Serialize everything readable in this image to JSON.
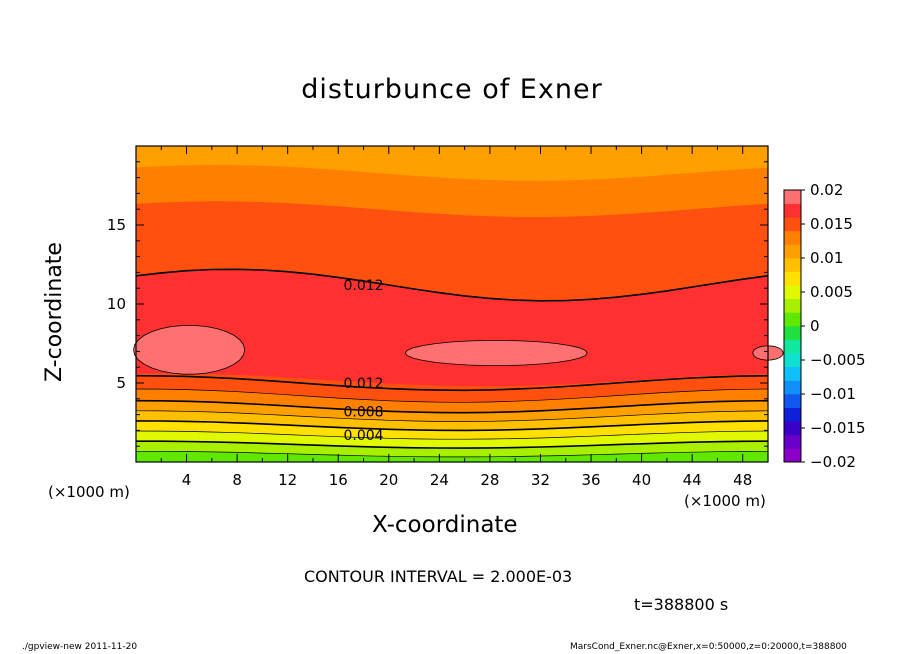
{
  "chart_data": {
    "type": "contour",
    "title": "disturbunce of Exner",
    "xlabel": "X-coordinate",
    "ylabel": "Z-coordinate",
    "x_unit_label": "(×1000 m)",
    "x_range": [
      0,
      50
    ],
    "y_range": [
      0,
      20
    ],
    "x_ticks": [
      4,
      8,
      12,
      16,
      20,
      24,
      28,
      32,
      36,
      40,
      44,
      48
    ],
    "y_ticks": [
      5,
      10,
      15
    ],
    "colorbar": {
      "tick_labels": [
        "0.02",
        "0.015",
        "0.01",
        "0.005",
        "0",
        "−0.005",
        "−0.01",
        "−0.015",
        "−0.02"
      ],
      "levels": [
        -0.02,
        -0.018,
        -0.016,
        -0.014,
        -0.012,
        -0.01,
        -0.008,
        -0.006,
        -0.004,
        -0.002,
        0,
        0.002,
        0.004,
        0.006,
        0.008,
        0.01,
        0.012,
        0.014,
        0.016,
        0.018,
        0.02
      ],
      "colors": [
        "#8b00c8",
        "#6a00c8",
        "#3a00c8",
        "#1020d8",
        "#1058f0",
        "#1090f8",
        "#10c0f8",
        "#10e0d0",
        "#10e8a0",
        "#20e040",
        "#60e800",
        "#a8f000",
        "#e0f800",
        "#ffe000",
        "#ffc000",
        "#ffa000",
        "#ff8000",
        "#ff5010",
        "#ff3030",
        "#ff7070"
      ]
    },
    "contour_labels": [
      "0.012",
      "0.012",
      "0.008",
      "0.004"
    ],
    "field_bands": {
      "surface": [
        0.0,
        0.002,
        0.004,
        0.006,
        0.008,
        0.01,
        0.012,
        0.014
      ],
      "interior": [
        0.016
      ],
      "top": [
        0.014,
        0.012,
        0.01
      ]
    },
    "contour_interval": "CONTOUR INTERVAL = 2.000E-03",
    "time_label": "t=388800 s"
  },
  "footer": {
    "left": "./gpview-new   2011-11-20",
    "right": "MarsCond_Exner.nc@Exner,x=0:50000,z=0:20000,t=388800"
  }
}
